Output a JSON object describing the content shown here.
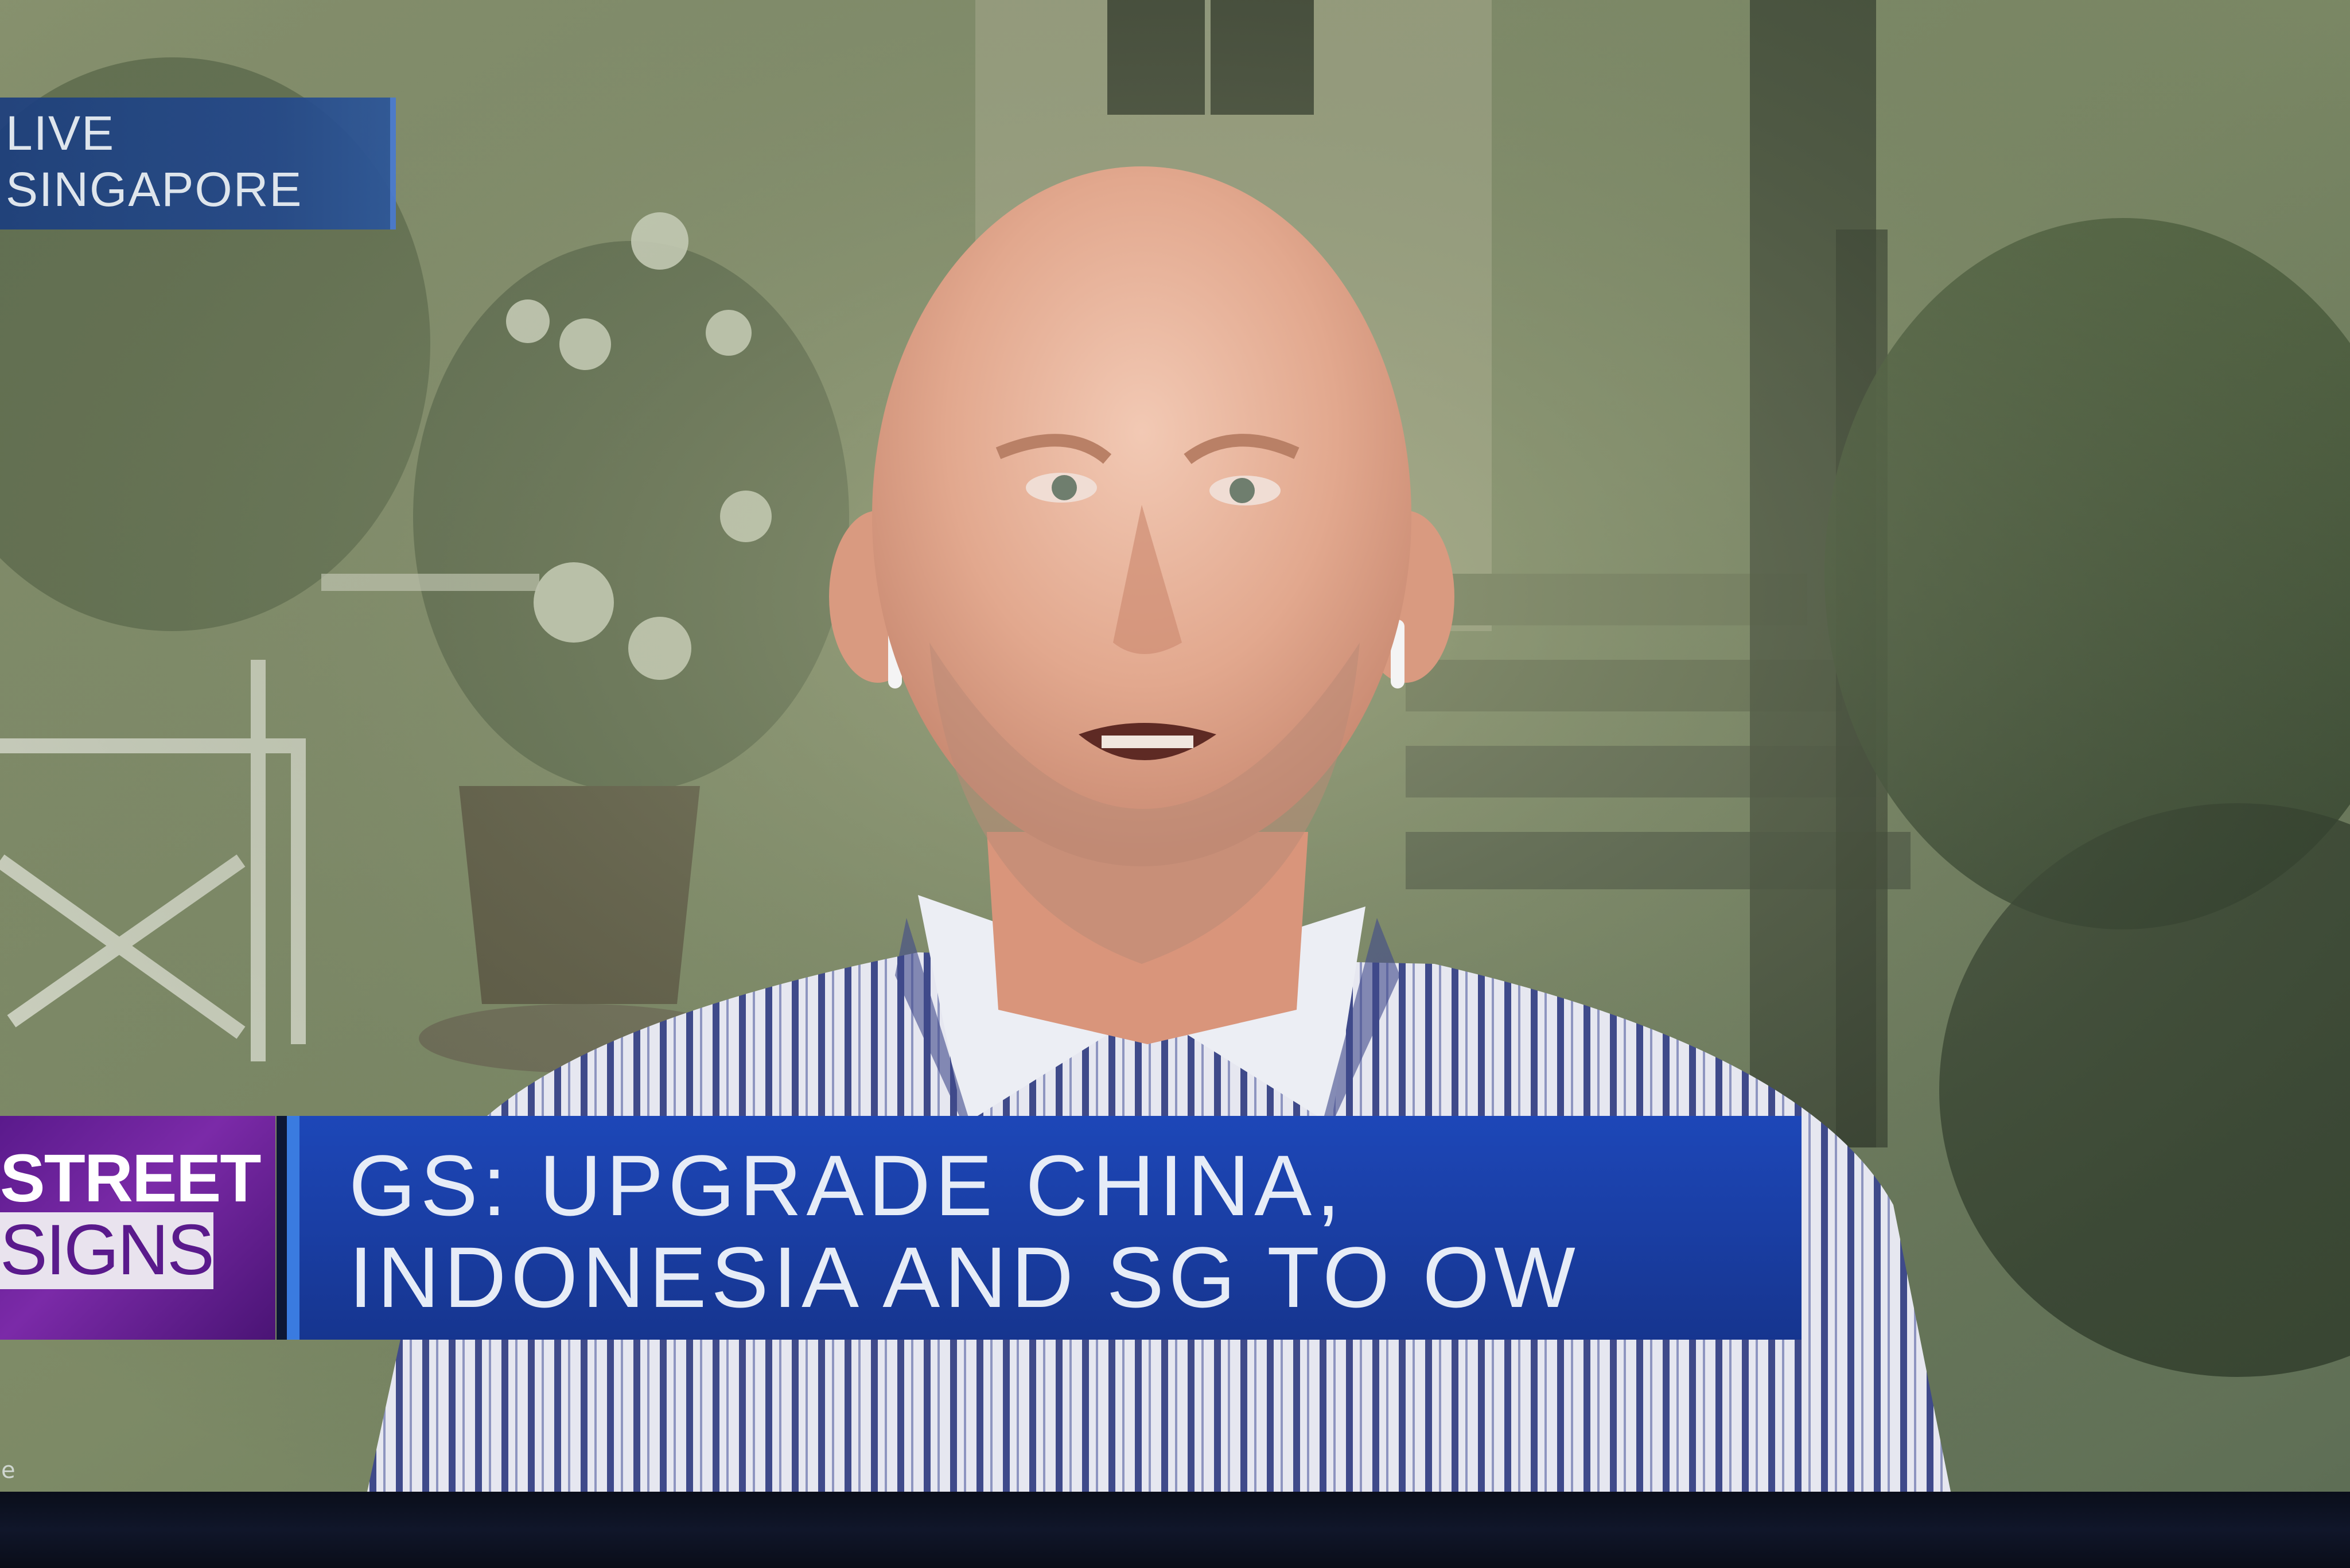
{
  "live_bug": {
    "line1": "LIVE",
    "line2": "SINGAPORE"
  },
  "show_logo": {
    "street": "STREET",
    "signs": "SIGNS"
  },
  "headline": {
    "line1": "GS: UPGRADE CHINA,",
    "line2": "INDONESIA AND SG TO OW"
  },
  "corner_mark": "e",
  "colors": {
    "live_bug_bg": "#24498a",
    "logo_purple": "#7b2aa8",
    "banner_blue": "#1a3fa6",
    "banner_accent": "#3a7be0"
  }
}
